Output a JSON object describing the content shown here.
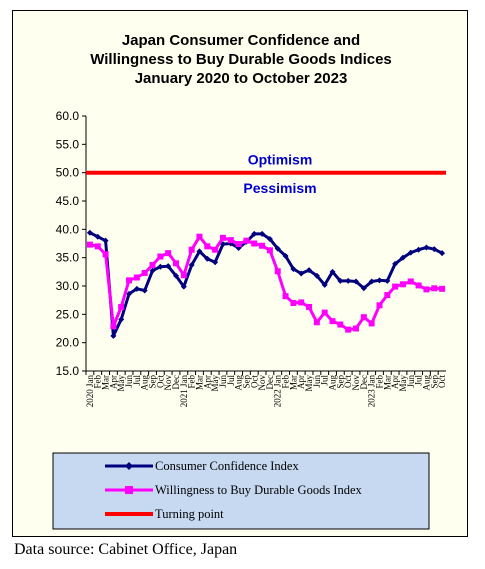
{
  "source_note": "Data source: Cabinet Office, Japan",
  "colors": {
    "background": "#fffff0",
    "legend_background": "#c6d9f1",
    "confidence": "#00007f",
    "willingness": "#ff00ff",
    "turning_point": "#ff0000",
    "label_blue": "#0000cc"
  },
  "chart_data": {
    "type": "line",
    "title": [
      "Japan Consumer Confidence and",
      "Willingness to Buy Durable Goods Indices",
      "January 2020 to October 2023"
    ],
    "ylim": [
      15,
      60
    ],
    "yticks": [
      "15.0",
      "20.0",
      "25.0",
      "30.0",
      "35.0",
      "40.0",
      "45.0",
      "50.0",
      "55.0",
      "60.0"
    ],
    "grid": false,
    "legend_position": "bottom",
    "annotations": [
      {
        "text": "Optimism",
        "y": 52.3
      },
      {
        "text": "Pessimism",
        "y": 47.3
      }
    ],
    "x": [
      "2020 Jan",
      "Feb",
      "Mar",
      "Apr",
      "May",
      "Jun",
      "Jul",
      "Aug",
      "Sep",
      "Oct",
      "Nov",
      "Dec",
      "2021 Jan",
      "Feb",
      "Mar",
      "Apr",
      "May",
      "Jun",
      "Jul",
      "Aug",
      "Sep",
      "Oct",
      "Nov",
      "Dec",
      "2022 Jan",
      "Feb",
      "Mar",
      "Apr",
      "May",
      "Jun",
      "Jul",
      "Aug",
      "Sep",
      "Oct",
      "Nov",
      "Dec",
      "2023 Jan",
      "Feb",
      "Mar",
      "Apr",
      "May",
      "Jun",
      "Jul",
      "Aug",
      "Sep",
      "Oct"
    ],
    "series": [
      {
        "name": "Consumer Confidence Index",
        "color": "#00007f",
        "marker": "diamond",
        "values": [
          39.4,
          38.7,
          38.0,
          21.2,
          24.1,
          28.6,
          29.5,
          29.2,
          32.7,
          33.4,
          33.5,
          31.8,
          29.9,
          33.7,
          36.1,
          34.8,
          34.2,
          37.4,
          37.5,
          36.7,
          37.8,
          39.2,
          39.2,
          38.3,
          36.6,
          35.3,
          33.0,
          32.2,
          32.8,
          31.8,
          30.2,
          32.5,
          30.9,
          30.9,
          30.8,
          29.6,
          30.8,
          31.0,
          30.9,
          33.9,
          35.0,
          35.9,
          36.4,
          36.8,
          36.5,
          35.8
        ]
      },
      {
        "name": "Willingness to Buy Durable Goods Index",
        "color": "#ff00ff",
        "marker": "square",
        "values": [
          37.3,
          37.0,
          35.6,
          22.9,
          26.3,
          31.0,
          31.5,
          32.3,
          33.7,
          35.2,
          35.8,
          34.0,
          31.9,
          36.4,
          38.7,
          37.0,
          36.4,
          38.5,
          38.1,
          37.4,
          38.0,
          37.5,
          37.1,
          36.3,
          32.6,
          28.2,
          27.0,
          27.1,
          26.3,
          23.6,
          25.3,
          23.8,
          23.2,
          22.3,
          22.5,
          24.5,
          23.4,
          26.6,
          28.4,
          29.9,
          30.3,
          30.8,
          30.1,
          29.4,
          29.6,
          29.5
        ]
      },
      {
        "name": "Turning point",
        "color": "#ff0000",
        "marker": "none",
        "values": [
          50,
          50,
          50,
          50,
          50,
          50,
          50,
          50,
          50,
          50,
          50,
          50,
          50,
          50,
          50,
          50,
          50,
          50,
          50,
          50,
          50,
          50,
          50,
          50,
          50,
          50,
          50,
          50,
          50,
          50,
          50,
          50,
          50,
          50,
          50,
          50,
          50,
          50,
          50,
          50,
          50,
          50,
          50,
          50,
          50,
          50
        ]
      }
    ]
  }
}
